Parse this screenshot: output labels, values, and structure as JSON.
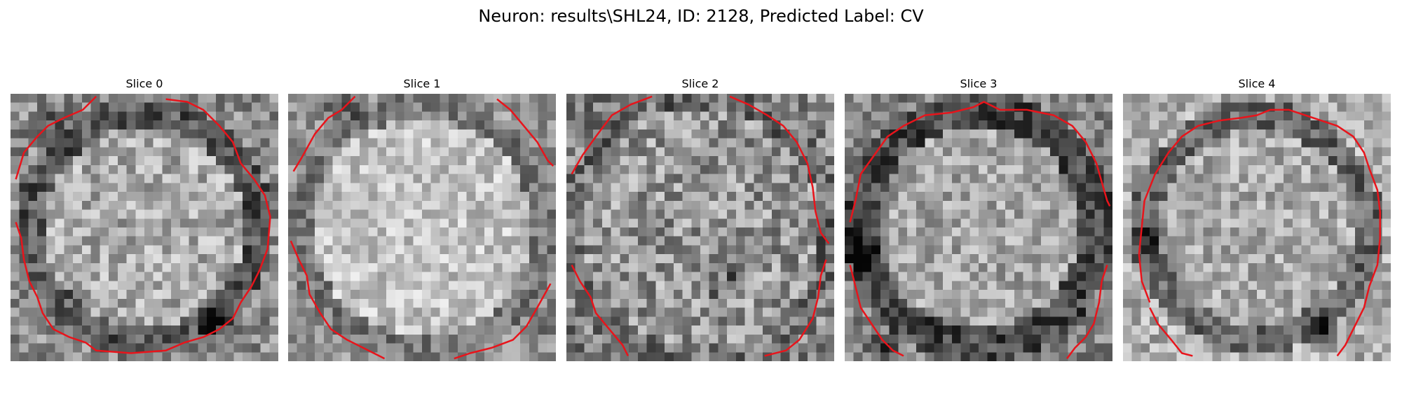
{
  "figure": {
    "title": "Neuron: results\\SHL24, ID: 2128, Predicted Label: CV",
    "boundary_color": "#e8141b"
  },
  "slices": [
    {
      "title": "Slice 0"
    },
    {
      "title": "Slice 1"
    },
    {
      "title": "Slice 2"
    },
    {
      "title": "Slice 3"
    },
    {
      "title": "Slice 4"
    }
  ]
}
